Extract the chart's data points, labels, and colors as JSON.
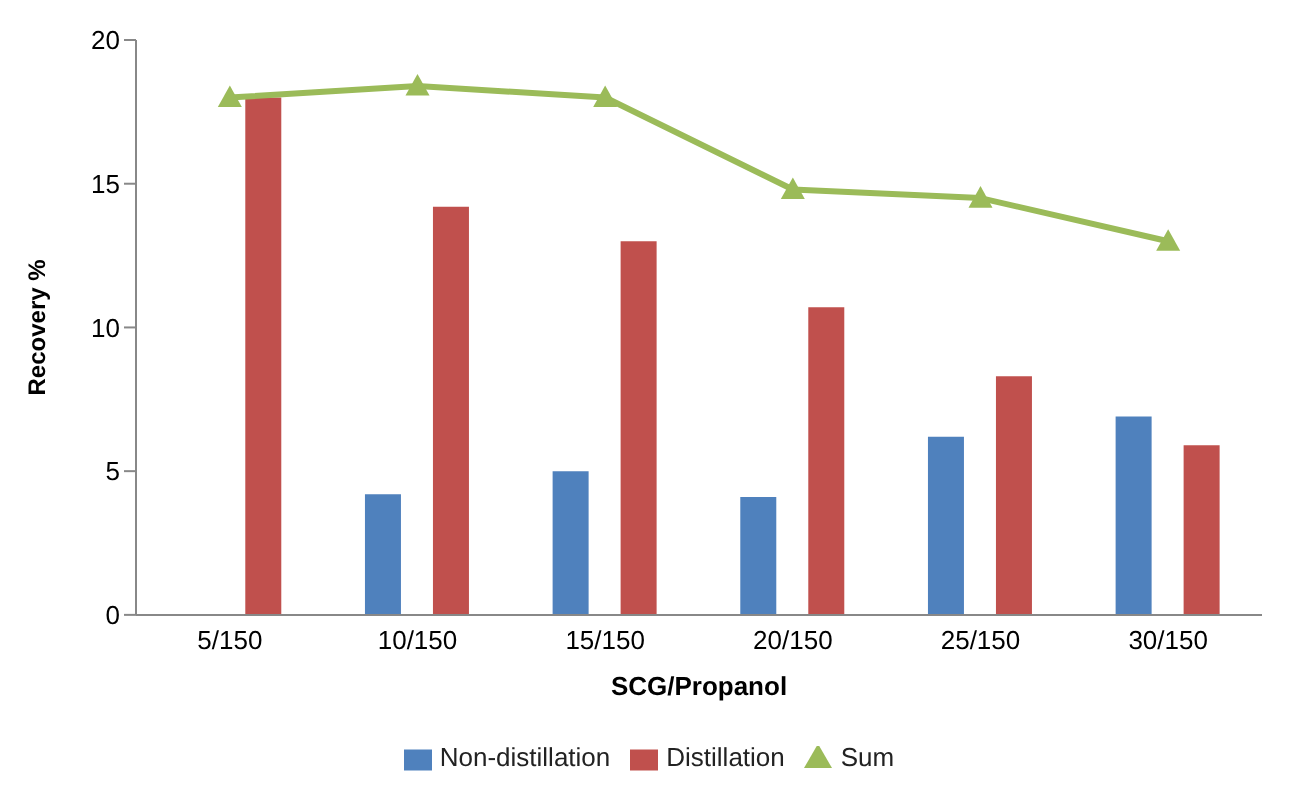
{
  "chart_data": {
    "type": "bar",
    "xlabel": "SCG/Propanol",
    "ylabel": "Recovery %",
    "categories": [
      "5/150",
      "10/150",
      "15/150",
      "20/150",
      "25/150",
      "30/150"
    ],
    "series": [
      {
        "name": "Non-distillation",
        "color": "#4f81bd",
        "values": [
          null,
          4.2,
          5.0,
          4.1,
          6.2,
          6.9
        ]
      },
      {
        "name": "Distillation",
        "color": "#c0504d",
        "values": [
          18.0,
          14.2,
          13.0,
          10.7,
          8.3,
          5.9
        ]
      },
      {
        "name": "Sum",
        "type": "line",
        "color": "#9bbb59",
        "values": [
          18.0,
          18.4,
          18.0,
          14.8,
          14.5,
          13.0
        ]
      }
    ],
    "ylim": [
      0,
      20
    ],
    "yticks": [
      0,
      5,
      10,
      15,
      20
    ],
    "grid": false,
    "legend": "bottom",
    "marker": "triangle",
    "line_style": "solid"
  }
}
